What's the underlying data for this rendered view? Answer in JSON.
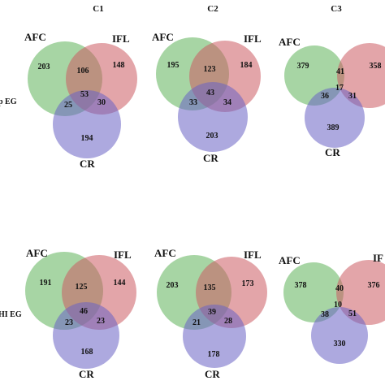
{
  "column_titles": [
    "C1",
    "C2",
    "C3"
  ],
  "row_labels": [
    "p EG",
    "HI EG"
  ],
  "set_labels": {
    "afc": "AFC",
    "ifl": "IFL",
    "cr": "CR"
  },
  "set_colors": {
    "afc": "#5fb35a",
    "ifl": "#cc5b63",
    "cr": "#6a63c4"
  },
  "ifl_label_top_right": "IFL",
  "ifl_label_clipped": "IF",
  "venns": [
    {
      "row": 0,
      "col": 0,
      "afc_only": "203",
      "ifl_only": "148",
      "cr_only": "194",
      "afc_ifl": "106",
      "afc_cr": "25",
      "ifl_cr": "30",
      "all": "53"
    },
    {
      "row": 0,
      "col": 1,
      "afc_only": "195",
      "ifl_only": "184",
      "cr_only": "203",
      "afc_ifl": "123",
      "afc_cr": "33",
      "ifl_cr": "34",
      "all": "43"
    },
    {
      "row": 0,
      "col": 2,
      "afc_only": "379",
      "ifl_only": "358",
      "cr_only": "389",
      "afc_ifl": "41",
      "afc_cr": "36",
      "ifl_cr": "31",
      "all": "17"
    },
    {
      "row": 1,
      "col": 0,
      "afc_only": "191",
      "ifl_only": "144",
      "cr_only": "168",
      "afc_ifl": "125",
      "afc_cr": "23",
      "ifl_cr": "23",
      "all": "46"
    },
    {
      "row": 1,
      "col": 1,
      "afc_only": "203",
      "ifl_only": "173",
      "cr_only": "178",
      "afc_ifl": "135",
      "afc_cr": "21",
      "ifl_cr": "28",
      "all": "39"
    },
    {
      "row": 1,
      "col": 2,
      "afc_only": "378",
      "ifl_only": "376",
      "cr_only": "330",
      "afc_ifl": "40",
      "afc_cr": "38",
      "ifl_cr": "51",
      "all": "10"
    }
  ]
}
